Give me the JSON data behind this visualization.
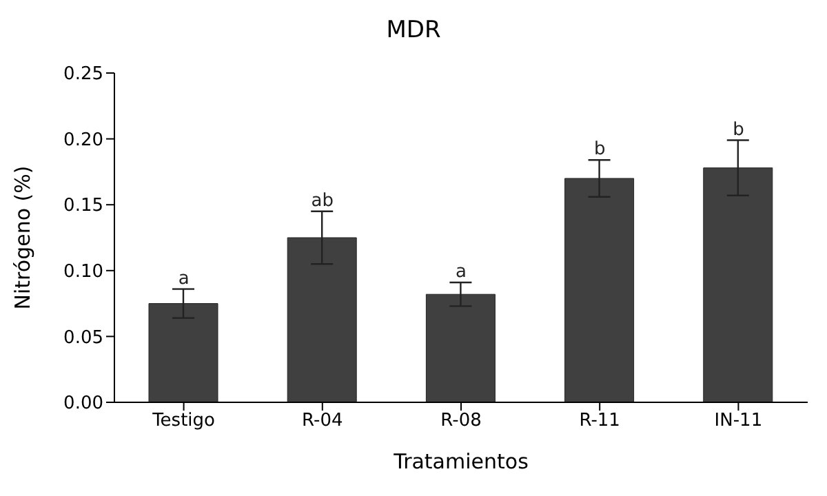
{
  "chart_data": {
    "type": "bar",
    "title": "MDR",
    "xlabel": "Tratamientos",
    "ylabel": "Nitrógeno (%)",
    "categories": [
      "Testigo",
      "R-04",
      "R-08",
      "R-11",
      "IN-11"
    ],
    "values": [
      0.075,
      0.125,
      0.082,
      0.17,
      0.178
    ],
    "errors": [
      0.011,
      0.02,
      0.009,
      0.014,
      0.021
    ],
    "color": "#404040",
    "ylim": [
      0,
      0.25
    ],
    "yticks": [
      {
        "value": 0,
        "label": "0.00"
      },
      {
        "value": 0.05,
        "label": "0.05"
      },
      {
        "value": 0.1,
        "label": "0.10"
      },
      {
        "value": 0.15,
        "label": "0.15"
      },
      {
        "value": 0.2,
        "label": "0.20"
      },
      {
        "value": 0.25,
        "label": "0.25"
      }
    ],
    "grid": false,
    "legend": false,
    "annotations": [
      {
        "text": "a",
        "x": "Testigo",
        "y": 0.086
      },
      {
        "text": "ab",
        "x": "R-04",
        "y": 0.145
      },
      {
        "text": "a",
        "x": "R-08",
        "y": 0.091
      },
      {
        "text": "b",
        "x": "R-11",
        "y": 0.184
      },
      {
        "text": "b",
        "x": "IN-11",
        "y": 0.199
      }
    ]
  }
}
